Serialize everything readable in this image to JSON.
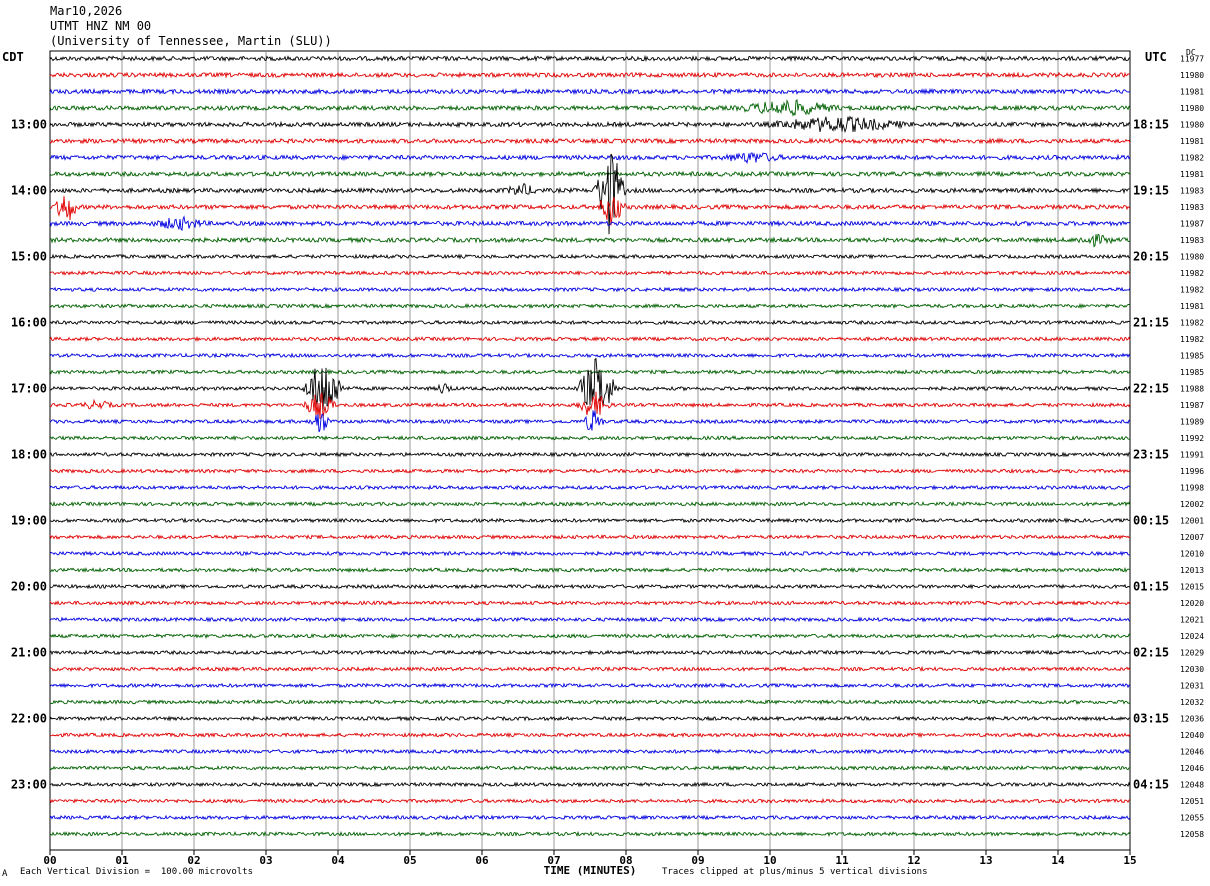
{
  "header": {
    "date": "Mar10,2026",
    "station": "UTMT HNZ NM 00",
    "institution": "(University of Tennessee, Martin (SLU))"
  },
  "left_timezone": "CDT",
  "right_timezone": "UTC",
  "dc_label": "DC",
  "footer": {
    "scale_note": "Each Vertical Division =  100.00 microvolts",
    "clip_note": "Traces clipped at plus/minus 5 vertical divisions",
    "corner_mark": "A"
  },
  "colors": {
    "trace_cycle": [
      "#000000",
      "#e00000",
      "#0000e0",
      "#006000"
    ],
    "grid": "#808080"
  },
  "chart_data": {
    "type": "line",
    "xlabel": "TIME (MINUTES)",
    "xlim": [
      0,
      15
    ],
    "x_tick_labels": [
      "00",
      "01",
      "02",
      "03",
      "04",
      "05",
      "06",
      "07",
      "08",
      "09",
      "10",
      "11",
      "12",
      "13",
      "14",
      "15"
    ],
    "left_hour_labels": [
      "13:00",
      "14:00",
      "15:00",
      "16:00",
      "17:00",
      "18:00",
      "19:00",
      "20:00",
      "21:00",
      "22:00",
      "23:00"
    ],
    "right_hour_labels": [
      "18:15",
      "19:15",
      "20:15",
      "21:15",
      "22:15",
      "23:15",
      "00:15",
      "01:15",
      "02:15",
      "03:15",
      "04:15"
    ],
    "hour_label_first_trace": 4,
    "traces_per_hour": 4,
    "dc_offsets": [
      "11977",
      "11980",
      "11981",
      "11980",
      "11980",
      "11981",
      "11982",
      "11981",
      "11983",
      "11983",
      "11987",
      "11983",
      "11980",
      "11982",
      "11982",
      "11981",
      "11982",
      "11982",
      "11985",
      "11985",
      "11988",
      "11987",
      "11989",
      "11992",
      "11991",
      "11996",
      "11998",
      "12002",
      "12001",
      "12007",
      "12010",
      "12013",
      "12015",
      "12020",
      "12021",
      "12024",
      "12029",
      "12030",
      "12031",
      "12032",
      "12036",
      "12040",
      "12046",
      "12046",
      "12048",
      "12051",
      "12055",
      "12058"
    ],
    "events": [
      {
        "trace": 3,
        "start_min": 9.5,
        "end_min": 11.0,
        "amplitude": 0.8
      },
      {
        "trace": 4,
        "start_min": 9.9,
        "end_min": 12.0,
        "amplitude": 0.8
      },
      {
        "trace": 6,
        "start_min": 9.3,
        "end_min": 10.2,
        "amplitude": 0.5
      },
      {
        "trace": 8,
        "start_min": 7.55,
        "end_min": 8.0,
        "amplitude": 5.0
      },
      {
        "trace": 8,
        "start_min": 6.3,
        "end_min": 6.8,
        "amplitude": 0.6
      },
      {
        "trace": 9,
        "start_min": 0.05,
        "end_min": 0.4,
        "amplitude": 1.8
      },
      {
        "trace": 9,
        "start_min": 7.6,
        "end_min": 8.0,
        "amplitude": 2.0
      },
      {
        "trace": 10,
        "start_min": 1.4,
        "end_min": 2.2,
        "amplitude": 0.6
      },
      {
        "trace": 11,
        "start_min": 14.2,
        "end_min": 14.8,
        "amplitude": 0.5
      },
      {
        "trace": 20,
        "start_min": 3.5,
        "end_min": 4.1,
        "amplitude": 3.5
      },
      {
        "trace": 20,
        "start_min": 7.3,
        "end_min": 7.9,
        "amplitude": 3.5
      },
      {
        "trace": 20,
        "start_min": 5.35,
        "end_min": 5.6,
        "amplitude": 0.6
      },
      {
        "trace": 21,
        "start_min": 3.5,
        "end_min": 4.0,
        "amplitude": 1.5
      },
      {
        "trace": 21,
        "start_min": 7.3,
        "end_min": 7.8,
        "amplitude": 1.5
      },
      {
        "trace": 21,
        "start_min": 0.4,
        "end_min": 0.9,
        "amplitude": 0.4
      },
      {
        "trace": 22,
        "start_min": 3.6,
        "end_min": 3.9,
        "amplitude": 1.4
      },
      {
        "trace": 22,
        "start_min": 7.4,
        "end_min": 7.7,
        "amplitude": 1.4
      }
    ]
  }
}
